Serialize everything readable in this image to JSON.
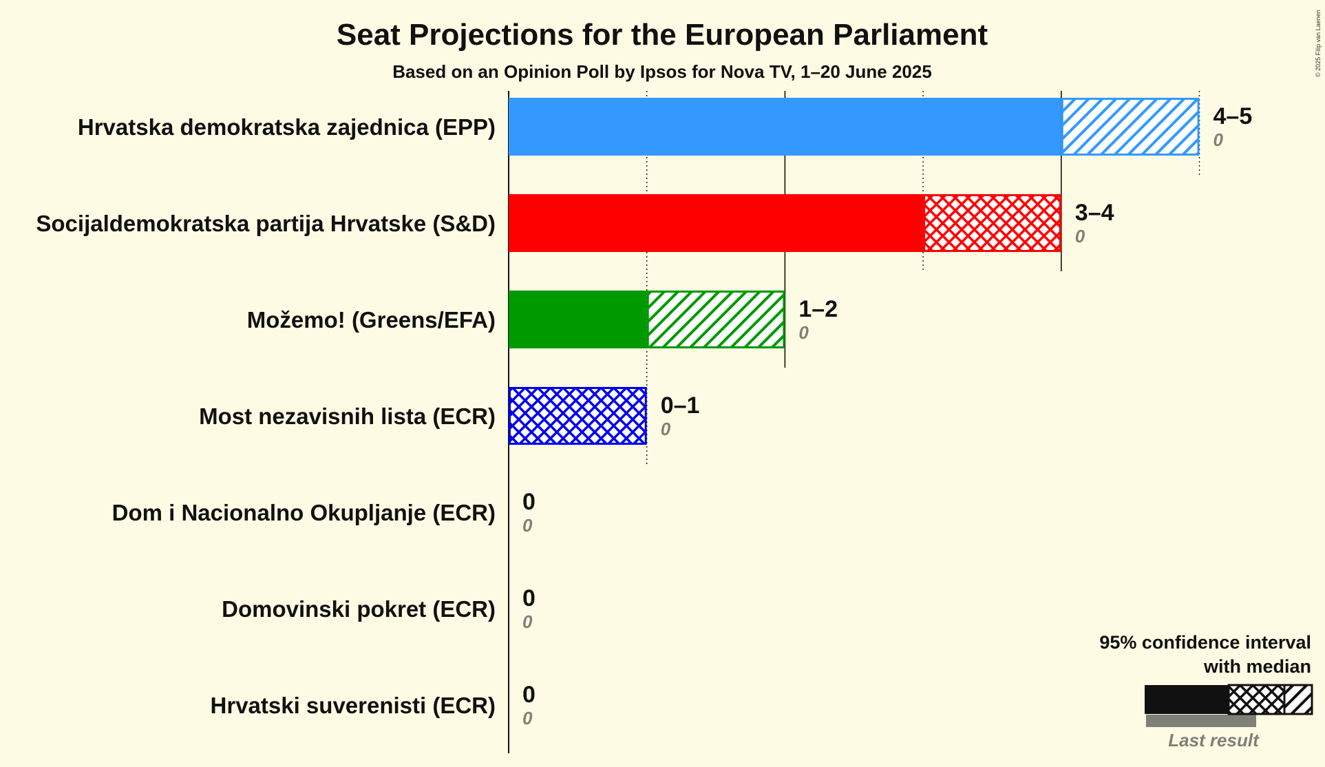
{
  "chart_data": {
    "type": "bar",
    "title": "Seat Projections for the European Parliament",
    "subtitle": "Based on an Opinion Poll by Ipsos for Nova TV, 1–20 June 2025",
    "copyright": "© 2025 Filip van Laenen",
    "xlim": [
      0,
      5
    ],
    "series": [
      {
        "name": "Hrvatska demokratska zajednica (EPP)",
        "color": "#3399FF",
        "low": 4,
        "median": 4,
        "high": 5,
        "range_label": "4–5",
        "last_result": 0,
        "last_label": "0"
      },
      {
        "name": "Socijaldemokratska partija Hrvatske (S&D)",
        "color": "#FF0000",
        "low": 3,
        "median": 4,
        "high": 4,
        "range_label": "3–4",
        "last_result": 0,
        "last_label": "0"
      },
      {
        "name": "Možemo! (Greens/EFA)",
        "color": "#009900",
        "low": 1,
        "median": 1,
        "high": 2,
        "range_label": "1–2",
        "last_result": 0,
        "last_label": "0"
      },
      {
        "name": "Most nezavisnih lista (ECR)",
        "color": "#0000EE",
        "low": 0,
        "median": 1,
        "high": 1,
        "range_label": "0–1",
        "last_result": 0,
        "last_label": "0"
      },
      {
        "name": "Dom i Nacionalno Okupljanje (ECR)",
        "color": "#0000EE",
        "low": 0,
        "median": 0,
        "high": 0,
        "range_label": "0",
        "last_result": 0,
        "last_label": "0"
      },
      {
        "name": "Domovinski pokret (ECR)",
        "color": "#0000EE",
        "low": 0,
        "median": 0,
        "high": 0,
        "range_label": "0",
        "last_result": 0,
        "last_label": "0"
      },
      {
        "name": "Hrvatski suverenisti (ECR)",
        "color": "#0000EE",
        "low": 0,
        "median": 0,
        "high": 0,
        "range_label": "0",
        "last_result": 0,
        "last_label": "0"
      }
    ],
    "legend": {
      "line1": "95% confidence interval",
      "line2": "with median",
      "last_result": "Last result",
      "placement": "bottom-right"
    }
  }
}
